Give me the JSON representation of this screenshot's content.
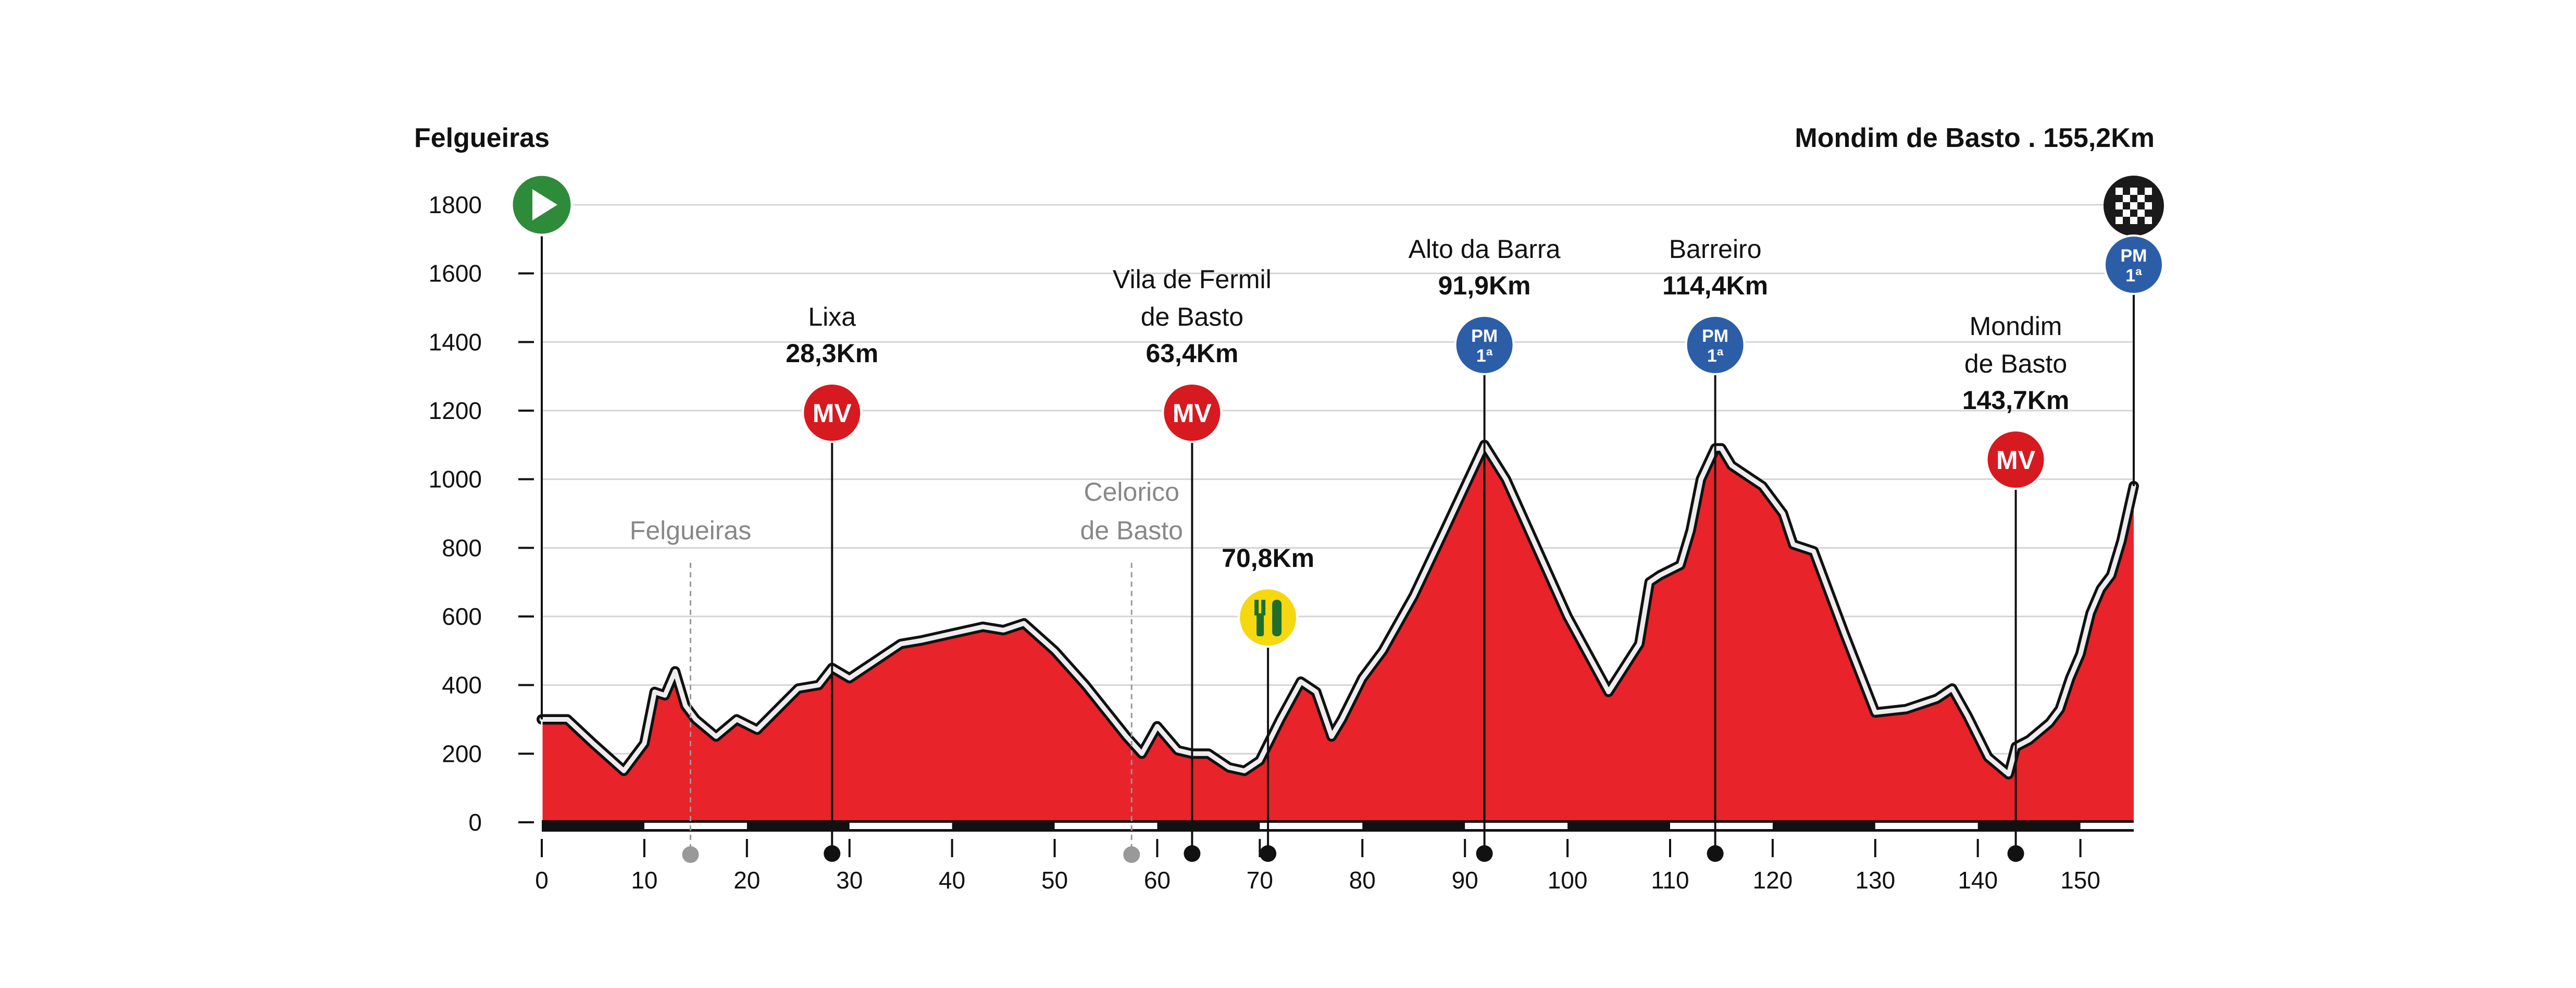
{
  "chart_data": {
    "type": "area",
    "start_label": "Felgueiras",
    "finish_label": "Mondim de Basto . 155,2Km",
    "xlabel": "",
    "ylabel": "",
    "xlim": [
      0,
      155.2
    ],
    "ylim": [
      0,
      1800
    ],
    "x_ticks": [
      0,
      10,
      20,
      30,
      40,
      50,
      60,
      70,
      80,
      90,
      100,
      110,
      120,
      130,
      140,
      150
    ],
    "y_ticks": [
      0,
      200,
      400,
      600,
      800,
      1000,
      1200,
      1400,
      1600,
      1800
    ],
    "fill_color": "#e8232a",
    "profile": {
      "x": [
        0,
        2.5,
        5,
        8,
        10,
        11,
        12,
        13,
        14,
        15,
        17,
        19,
        21,
        23,
        25,
        27,
        28.3,
        30,
        32,
        35,
        37,
        40,
        43,
        45,
        47,
        50,
        53,
        57,
        58.5,
        60,
        62,
        63.4,
        65,
        67,
        68.5,
        70,
        72,
        74,
        75.5,
        77,
        78,
        80,
        82,
        85,
        88,
        91.9,
        94,
        97,
        100,
        104,
        107,
        108,
        109,
        111,
        112,
        113,
        114.4,
        115,
        116,
        118,
        119,
        121,
        122,
        124,
        127,
        130,
        133,
        136,
        137.5,
        139,
        141,
        143,
        143.7,
        145,
        147,
        148,
        149,
        150,
        151,
        152,
        153,
        154,
        155.2
      ],
      "y": [
        300,
        300,
        230,
        150,
        230,
        380,
        370,
        440,
        340,
        300,
        250,
        300,
        270,
        330,
        390,
        400,
        450,
        420,
        460,
        520,
        530,
        550,
        570,
        560,
        580,
        500,
        400,
        250,
        200,
        280,
        210,
        200,
        200,
        160,
        150,
        180,
        300,
        410,
        380,
        250,
        300,
        420,
        500,
        660,
        850,
        1100,
        1000,
        800,
        600,
        380,
        520,
        700,
        720,
        750,
        850,
        1000,
        1090,
        1090,
        1040,
        1000,
        980,
        900,
        810,
        790,
        550,
        320,
        330,
        360,
        390,
        310,
        190,
        140,
        220,
        240,
        290,
        330,
        420,
        490,
        610,
        680,
        720,
        820,
        980
      ]
    },
    "stripe_colors": [
      "#111111",
      "#ffffff"
    ],
    "reference_points": [
      {
        "name_lines": [
          "Felgueiras"
        ],
        "km": 14.5
      },
      {
        "name_lines": [
          "Celorico",
          "de Basto"
        ],
        "km": 57.5
      }
    ],
    "climbs": [
      {
        "name_lines": [
          "Lixa"
        ],
        "km_label": "28,3Km",
        "km": 28.3,
        "badge": "MV",
        "badge_sub": "",
        "color": "#d71920"
      },
      {
        "name_lines": [
          "Vila de Fermil",
          "de Basto"
        ],
        "km_label": "63,4Km",
        "km": 63.4,
        "badge": "MV",
        "badge_sub": "",
        "color": "#d71920"
      },
      {
        "name_lines": [],
        "km_label": "70,8Km",
        "km": 70.8,
        "badge": "feed",
        "badge_sub": "",
        "color": "#f5d80f"
      },
      {
        "name_lines": [
          "Alto da Barra"
        ],
        "km_label": "91,9Km",
        "km": 91.9,
        "badge": "PM",
        "badge_sub": "1ª",
        "color": "#2c5ea8"
      },
      {
        "name_lines": [
          "Barreiro"
        ],
        "km_label": "114,4Km",
        "km": 114.4,
        "badge": "PM",
        "badge_sub": "1ª",
        "color": "#2c5ea8"
      },
      {
        "name_lines": [
          "Mondim",
          "de Basto"
        ],
        "km_label": "143,7Km",
        "km": 143.7,
        "badge": "MV",
        "badge_sub": "",
        "color": "#d71920"
      }
    ],
    "finish_badge": {
      "badge": "PM",
      "badge_sub": "1ª",
      "color": "#2c5ea8"
    },
    "start_icon": "play-icon",
    "finish_icon": "checkered-flag-icon",
    "start_color": "#2e8b3a"
  }
}
